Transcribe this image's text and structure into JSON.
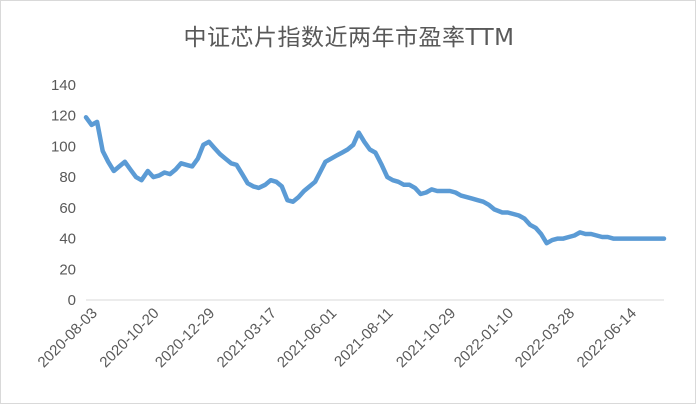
{
  "chart_data": {
    "type": "line",
    "title": "中证芯片指数近两年市盈率TTM",
    "xlabel": "",
    "ylabel": "",
    "ylim": [
      0,
      140
    ],
    "yticks": [
      0,
      20,
      40,
      60,
      80,
      100,
      120,
      140
    ],
    "xticks": [
      "2020-08-03",
      "2020-10-20",
      "2020-12-29",
      "2021-03-17",
      "2021-06-01",
      "2021-08-11",
      "2021-10-29",
      "2022-01-10",
      "2022-03-28",
      "2022-06-14"
    ],
    "grid": false,
    "legend": "none",
    "series": [
      {
        "color": "#5b9bd5",
        "x": [
          "2020-08-03",
          "2020-08-10",
          "2020-08-17",
          "2020-08-24",
          "2020-08-31",
          "2020-09-07",
          "2020-09-14",
          "2020-09-21",
          "2020-09-28",
          "2020-10-05",
          "2020-10-12",
          "2020-10-20",
          "2020-10-27",
          "2020-11-03",
          "2020-11-10",
          "2020-11-17",
          "2020-11-24",
          "2020-12-01",
          "2020-12-08",
          "2020-12-15",
          "2020-12-22",
          "2020-12-29",
          "2021-01-05",
          "2021-01-12",
          "2021-01-19",
          "2021-01-26",
          "2021-02-02",
          "2021-02-09",
          "2021-02-16",
          "2021-02-23",
          "2021-03-02",
          "2021-03-09",
          "2021-03-17",
          "2021-03-24",
          "2021-03-31",
          "2021-04-07",
          "2021-04-14",
          "2021-04-21",
          "2021-04-28",
          "2021-05-05",
          "2021-05-12",
          "2021-05-19",
          "2021-05-26",
          "2021-06-01",
          "2021-06-08",
          "2021-06-15",
          "2021-06-22",
          "2021-06-29",
          "2021-07-06",
          "2021-07-13",
          "2021-07-20",
          "2021-07-27",
          "2021-08-03",
          "2021-08-11",
          "2021-08-18",
          "2021-08-25",
          "2021-09-01",
          "2021-09-08",
          "2021-09-15",
          "2021-09-22",
          "2021-09-29",
          "2021-10-06",
          "2021-10-13",
          "2021-10-20",
          "2021-10-29",
          "2021-11-05",
          "2021-11-12",
          "2021-11-19",
          "2021-11-26",
          "2021-12-03",
          "2021-12-10",
          "2021-12-17",
          "2021-12-24",
          "2021-12-31",
          "2022-01-10",
          "2022-01-17",
          "2022-01-24",
          "2022-01-31",
          "2022-02-07",
          "2022-02-14",
          "2022-02-21",
          "2022-02-28",
          "2022-03-07",
          "2022-03-14",
          "2022-03-21",
          "2022-03-28",
          "2022-04-04",
          "2022-04-11",
          "2022-04-18",
          "2022-04-25",
          "2022-05-02",
          "2022-05-09",
          "2022-05-16",
          "2022-05-23",
          "2022-05-30",
          "2022-06-06",
          "2022-06-14",
          "2022-06-21",
          "2022-06-28",
          "2022-07-05",
          "2022-07-12",
          "2022-07-19",
          "2022-07-26",
          "2022-08-02"
        ],
        "values": [
          119,
          114,
          116,
          97,
          90,
          84,
          87,
          90,
          85,
          80,
          78,
          84,
          80,
          81,
          83,
          82,
          85,
          89,
          88,
          87,
          92,
          101,
          103,
          99,
          95,
          92,
          89,
          88,
          82,
          76,
          74,
          73,
          75,
          78,
          77,
          74,
          65,
          64,
          67,
          71,
          74,
          77,
          84,
          90,
          92,
          94,
          96,
          98,
          101,
          109,
          103,
          98,
          96,
          88,
          80,
          78,
          77,
          75,
          75,
          73,
          69,
          70,
          72,
          71,
          71,
          71,
          70,
          68,
          67,
          66,
          65,
          64,
          62,
          59,
          57,
          57,
          56,
          55,
          53,
          49,
          47,
          43,
          37,
          39,
          40,
          40,
          41,
          42,
          44,
          43,
          43,
          42,
          41,
          41,
          40,
          40,
          40,
          40,
          40,
          40,
          40,
          40,
          40,
          40
        ],
        "values_note": ""
      }
    ]
  }
}
